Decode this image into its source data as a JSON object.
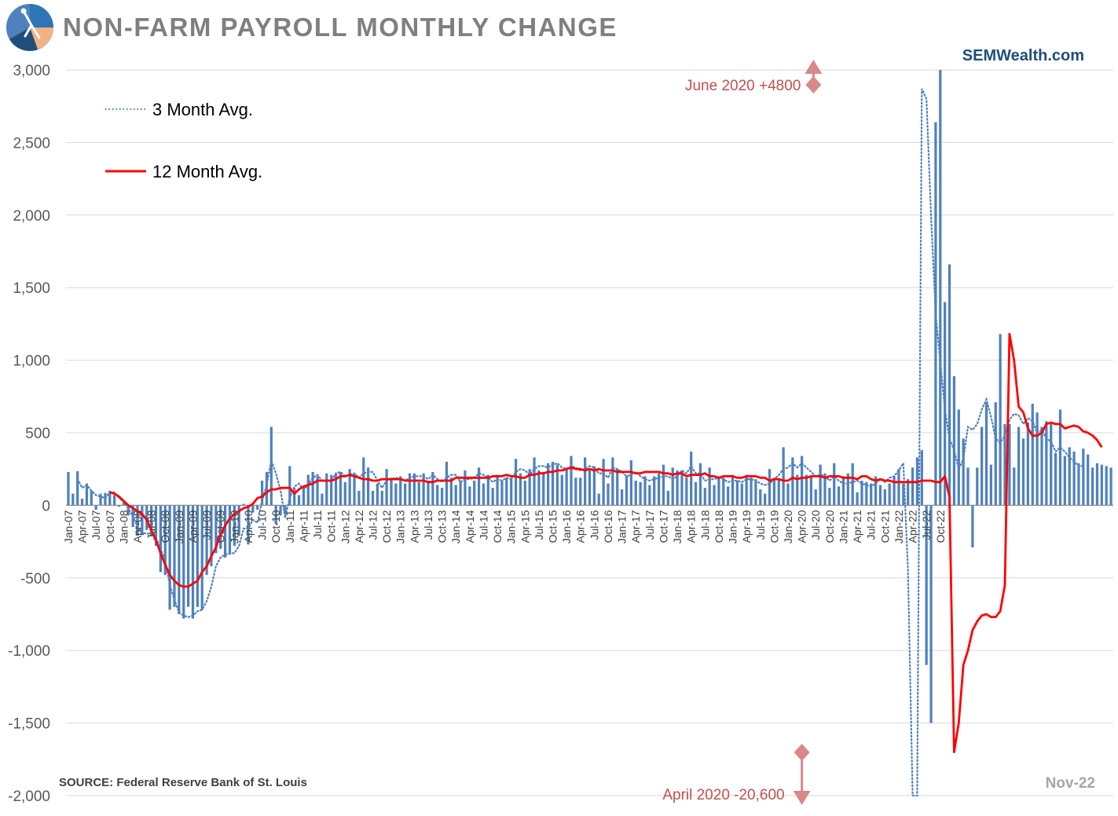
{
  "header": {
    "title": "NON-FARM PAYROLL MONTHLY CHANGE",
    "brand": "SEMWealth.com",
    "source": "SOURCE:  Federal Reserve Bank of St. Louis",
    "date_stamp": "Nov-22"
  },
  "colors": {
    "bars": "#4f81bd",
    "avg3": "#4f81bd",
    "avg12": "#ff0000",
    "annotation": "#c0504d",
    "arrow": "#d9888a",
    "title": "#7f7f7f",
    "brand": "#1f4e79",
    "grid": "#d9d9d9"
  },
  "chart_data": {
    "type": "bar",
    "title": "NON-FARM PAYROLL MONTHLY CHANGE",
    "xlabel": "",
    "ylabel": "",
    "ylim": [
      -2000,
      3000
    ],
    "yticks": [
      -2000,
      -1500,
      -1000,
      -500,
      0,
      500,
      1000,
      1500,
      2000,
      2500,
      3000
    ],
    "ytick_labels": [
      "-2,000",
      "-1,500",
      "-1,000",
      "-500",
      "0",
      "500",
      "1,000",
      "1,500",
      "2,000",
      "2,500",
      "3,000"
    ],
    "grid": true,
    "legend_position": "top-left",
    "start_month": "Jan-07",
    "xtick_labels": [
      "Jan-07",
      "Apr-07",
      "Jul-07",
      "Oct-07",
      "Jan-08",
      "Apr-08",
      "Jul-08",
      "Oct-08",
      "Jan-09",
      "Apr-09",
      "Jul-09",
      "Oct-09",
      "Jan-10",
      "Apr-10",
      "Jul-10",
      "Oct-10",
      "Jan-11",
      "Apr-11",
      "Jul-11",
      "Oct-11",
      "Jan-12",
      "Apr-12",
      "Jul-12",
      "Oct-12",
      "Jan-13",
      "Apr-13",
      "Jul-13",
      "Oct-13",
      "Jan-14",
      "Apr-14",
      "Jul-14",
      "Oct-14",
      "Jan-15",
      "Apr-15",
      "Jul-15",
      "Oct-15",
      "Jan-16",
      "Apr-16",
      "Jul-16",
      "Oct-16",
      "Jan-17",
      "Apr-17",
      "Jul-17",
      "Oct-17",
      "Jan-18",
      "Apr-18",
      "Jul-18",
      "Oct-18",
      "Jan-19",
      "Apr-19",
      "Jul-19",
      "Oct-19",
      "Jan-20",
      "Apr-20",
      "Jul-20",
      "Oct-20",
      "Jan-21",
      "Apr-21",
      "Jul-21",
      "Oct-21",
      "Jan-22",
      "Apr-22",
      "Jul-22",
      "Oct-22"
    ],
    "bars_series": {
      "values": [
        230,
        80,
        235,
        45,
        150,
        100,
        -30,
        80,
        85,
        100,
        70,
        -10,
        20,
        -70,
        -150,
        -210,
        -200,
        -170,
        -210,
        -280,
        -460,
        -480,
        -720,
        -700,
        -750,
        -780,
        -700,
        -780,
        -700,
        -720,
        -480,
        -420,
        -330,
        -300,
        -360,
        -340,
        -280,
        -210,
        10,
        -270,
        -50,
        -30,
        170,
        230,
        540,
        -130,
        -70,
        -60,
        270,
        120,
        70,
        130,
        210,
        230,
        200,
        80,
        220,
        210,
        220,
        230,
        160,
        250,
        220,
        100,
        330,
        260,
        100,
        150,
        100,
        250,
        190,
        150,
        200,
        150,
        220,
        220,
        160,
        220,
        170,
        230,
        140,
        120,
        300,
        190,
        140,
        170,
        240,
        130,
        170,
        260,
        150,
        210,
        120,
        210,
        170,
        190,
        190,
        320,
        220,
        170,
        250,
        330,
        240,
        230,
        290,
        300,
        280,
        210,
        260,
        340,
        190,
        190,
        330,
        250,
        270,
        80,
        320,
        150,
        330,
        250,
        110,
        200,
        310,
        170,
        160,
        200,
        140,
        200,
        220,
        280,
        100,
        260,
        240,
        240,
        190,
        370,
        160,
        290,
        120,
        260,
        140,
        200,
        190,
        130,
        210,
        170,
        150,
        210,
        190,
        180,
        110,
        80,
        250,
        190,
        180,
        400,
        150,
        330,
        210,
        340,
        210,
        200,
        110,
        280,
        220,
        120,
        290,
        130,
        200,
        220,
        290,
        90,
        170,
        160,
        150,
        200,
        140,
        110,
        150,
        200,
        250,
        150,
        180,
        260,
        330,
        380,
        -1100,
        -1500,
        2640,
        4800,
        1400,
        1660,
        890,
        660,
        460,
        260,
        -290,
        260,
        540,
        710,
        280,
        710,
        1180,
        560,
        560,
        260,
        540,
        460,
        570,
        700,
        640,
        540,
        580,
        560,
        360,
        660,
        340,
        400,
        370,
        290,
        390,
        350,
        260,
        290,
        280,
        270,
        260
      ],
      "clip_labels": [
        "April 2020 -20,600",
        "June 2020 +4800"
      ]
    },
    "series": [
      {
        "name": "3 Month Avg.",
        "values": [
          null,
          null,
          180,
          120,
          140,
          100,
          70,
          60,
          50,
          90,
          90,
          50,
          25,
          -20,
          -80,
          -145,
          -190,
          -195,
          -195,
          -225,
          -300,
          -380,
          -550,
          -650,
          -740,
          -760,
          -770,
          -760,
          -730,
          -720,
          -660,
          -560,
          -420,
          -360,
          -340,
          -330,
          -330,
          -280,
          -160,
          -160,
          -100,
          -120,
          30,
          140,
          310,
          220,
          100,
          -85,
          50,
          130,
          150,
          110,
          140,
          190,
          210,
          170,
          170,
          170,
          220,
          230,
          200,
          210,
          220,
          190,
          220,
          230,
          230,
          170,
          120,
          170,
          180,
          190,
          180,
          170,
          190,
          200,
          200,
          200,
          180,
          210,
          180,
          160,
          190,
          210,
          210,
          160,
          180,
          180,
          190,
          220,
          210,
          190,
          160,
          180,
          170,
          190,
          180,
          230,
          250,
          240,
          210,
          250,
          270,
          270,
          260,
          280,
          290,
          260,
          250,
          270,
          260,
          240,
          250,
          270,
          260,
          220,
          220,
          190,
          260,
          250,
          230,
          200,
          210,
          230,
          200,
          180,
          170,
          180,
          190,
          200,
          200,
          180,
          200,
          240,
          220,
          270,
          220,
          220,
          170,
          180,
          180,
          190,
          180,
          160,
          170,
          170,
          160,
          180,
          180,
          170,
          150,
          140,
          150,
          180,
          210,
          250,
          260,
          290,
          260,
          290,
          260,
          230,
          200,
          210,
          200,
          170,
          200,
          170,
          150,
          150,
          160,
          170,
          150,
          140,
          130,
          150,
          180,
          160,
          190,
          200,
          240,
          290,
          -450,
          -2050,
          -2000,
          2870,
          2800,
          2000,
          1320,
          990,
          660,
          460,
          380,
          250,
          320,
          540,
          520,
          560,
          660,
          730,
          610,
          460,
          430,
          480,
          590,
          630,
          620,
          560,
          600,
          580,
          500,
          520,
          460,
          440,
          370,
          400,
          370,
          330,
          300,
          270,
          270
        ],
        "style": "dotted"
      },
      {
        "name": "12 Month Avg.",
        "values": [
          null,
          null,
          null,
          null,
          null,
          null,
          null,
          null,
          null,
          90,
          80,
          60,
          30,
          0,
          -20,
          -40,
          -60,
          -100,
          -170,
          -240,
          -330,
          -410,
          -480,
          -520,
          -550,
          -560,
          -560,
          -540,
          -520,
          -460,
          -420,
          -350,
          -290,
          -200,
          -140,
          -90,
          -60,
          -40,
          -20,
          -10,
          10,
          50,
          60,
          90,
          110,
          110,
          120,
          120,
          120,
          80,
          110,
          130,
          140,
          150,
          170,
          170,
          170,
          170,
          180,
          200,
          200,
          210,
          200,
          190,
          180,
          180,
          170,
          170,
          180,
          180,
          180,
          180,
          180,
          170,
          170,
          170,
          170,
          170,
          160,
          160,
          170,
          170,
          170,
          170,
          190,
          190,
          190,
          190,
          190,
          190,
          190,
          190,
          200,
          200,
          200,
          210,
          200,
          200,
          190,
          190,
          210,
          210,
          220,
          220,
          230,
          230,
          240,
          240,
          250,
          260,
          250,
          250,
          240,
          250,
          240,
          250,
          240,
          240,
          240,
          230,
          230,
          230,
          230,
          220,
          220,
          230,
          230,
          230,
          230,
          220,
          220,
          210,
          220,
          220,
          200,
          210,
          210,
          210,
          220,
          200,
          200,
          190,
          200,
          200,
          200,
          190,
          190,
          200,
          200,
          200,
          190,
          190,
          170,
          180,
          180,
          170,
          170,
          190,
          180,
          190,
          190,
          200,
          200,
          200,
          190,
          200,
          200,
          200,
          190,
          190,
          190,
          180,
          200,
          200,
          180,
          170,
          180,
          170,
          170,
          160,
          160,
          160,
          160,
          160,
          160,
          170,
          170,
          170,
          160,
          160,
          200,
          60,
          -1700,
          -1500,
          -1100,
          -1000,
          -860,
          -800,
          -760,
          -750,
          -770,
          -770,
          -730,
          -550,
          1180,
          1000,
          680,
          640,
          530,
          480,
          480,
          500,
          560,
          570,
          560,
          560,
          530,
          540,
          550,
          540,
          510,
          500,
          480,
          450,
          400
        ],
        "style": "solid"
      }
    ],
    "annotations": [
      {
        "label": "June 2020 +4800",
        "x_month": "Jun-20",
        "value": 3000,
        "direction": "up"
      },
      {
        "label": "April 2020 -20,600",
        "x_month": "Apr-20",
        "value": -2000,
        "direction": "down"
      }
    ]
  }
}
